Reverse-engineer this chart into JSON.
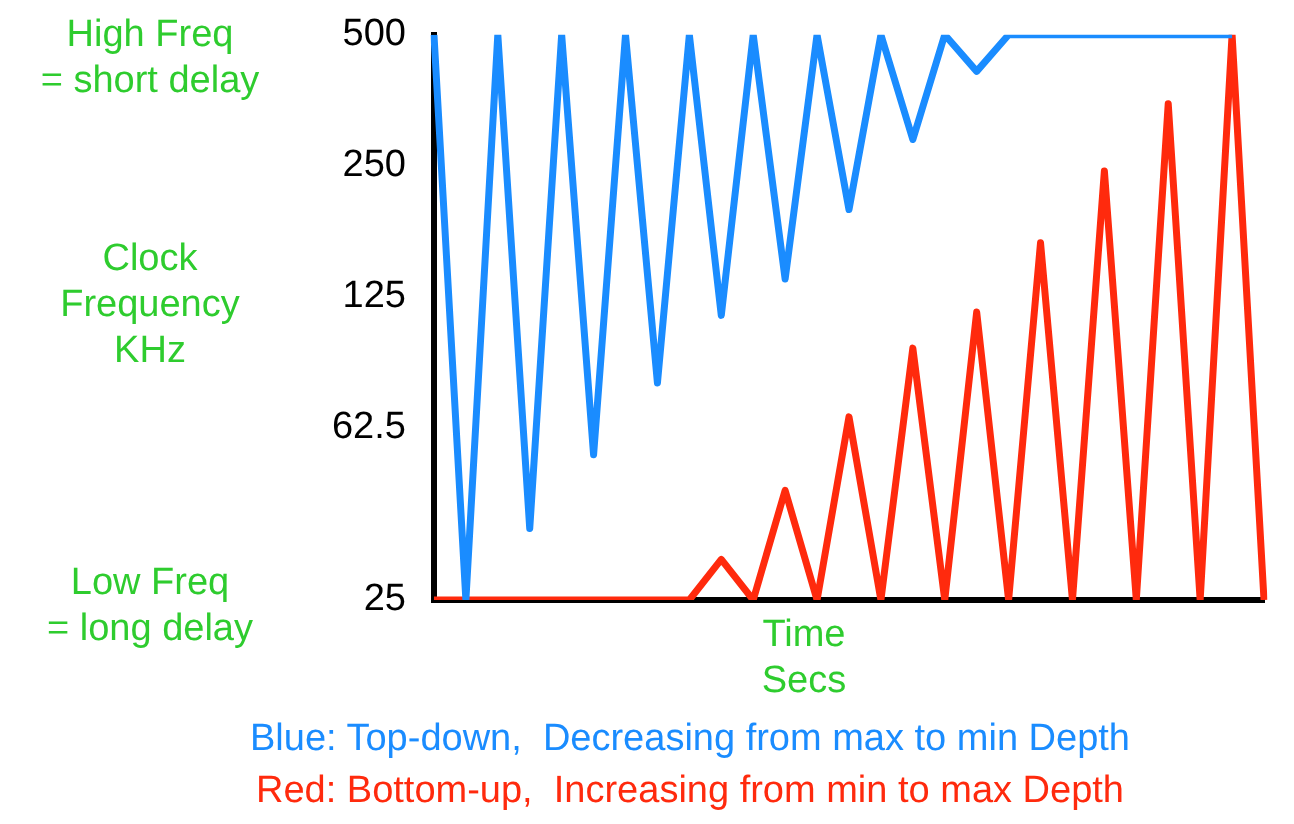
{
  "chart_data": {
    "type": "line",
    "xlabel": "Time\nSecs",
    "ylabel": "Clock\nFrequency\nKHz",
    "categories": [
      null,
      null,
      null,
      null,
      null,
      null,
      null,
      null,
      null,
      null,
      null,
      null,
      null,
      null,
      null,
      null,
      null,
      null,
      null,
      null,
      null,
      null,
      null,
      null,
      null,
      null,
      null
    ],
    "series": [
      {
        "color": "#1a8cff",
        "values": [
          500,
          25,
          500,
          36.5,
          500,
          54,
          500,
          79,
          500,
          113,
          500,
          137,
          500,
          198,
          500,
          287,
          500,
          412,
          500,
          500,
          500,
          500,
          500,
          500,
          500,
          500,
          null
        ]
      },
      {
        "color": "#ff2a0d",
        "values": [
          25,
          25,
          25,
          25,
          25,
          25,
          25,
          25,
          25,
          31,
          25,
          44.7,
          25,
          66,
          25,
          95,
          25,
          115,
          25,
          166,
          25,
          243,
          25,
          347,
          25,
          500,
          25
        ]
      }
    ],
    "log": "y",
    "ylim": [
      25,
      500
    ],
    "yticks": [
      25,
      62.5,
      125,
      250,
      500
    ],
    "grid": false,
    "legend": false,
    "marker": "none",
    "line_style": "solid",
    "annotations": [
      "High Freq\n= short delay",
      "Low Freq\n= long delay",
      "Blue: Top-down,  Decreasing from max to min Depth",
      "Red: Bottom-up,  Increasing from min to max Depth"
    ]
  }
}
